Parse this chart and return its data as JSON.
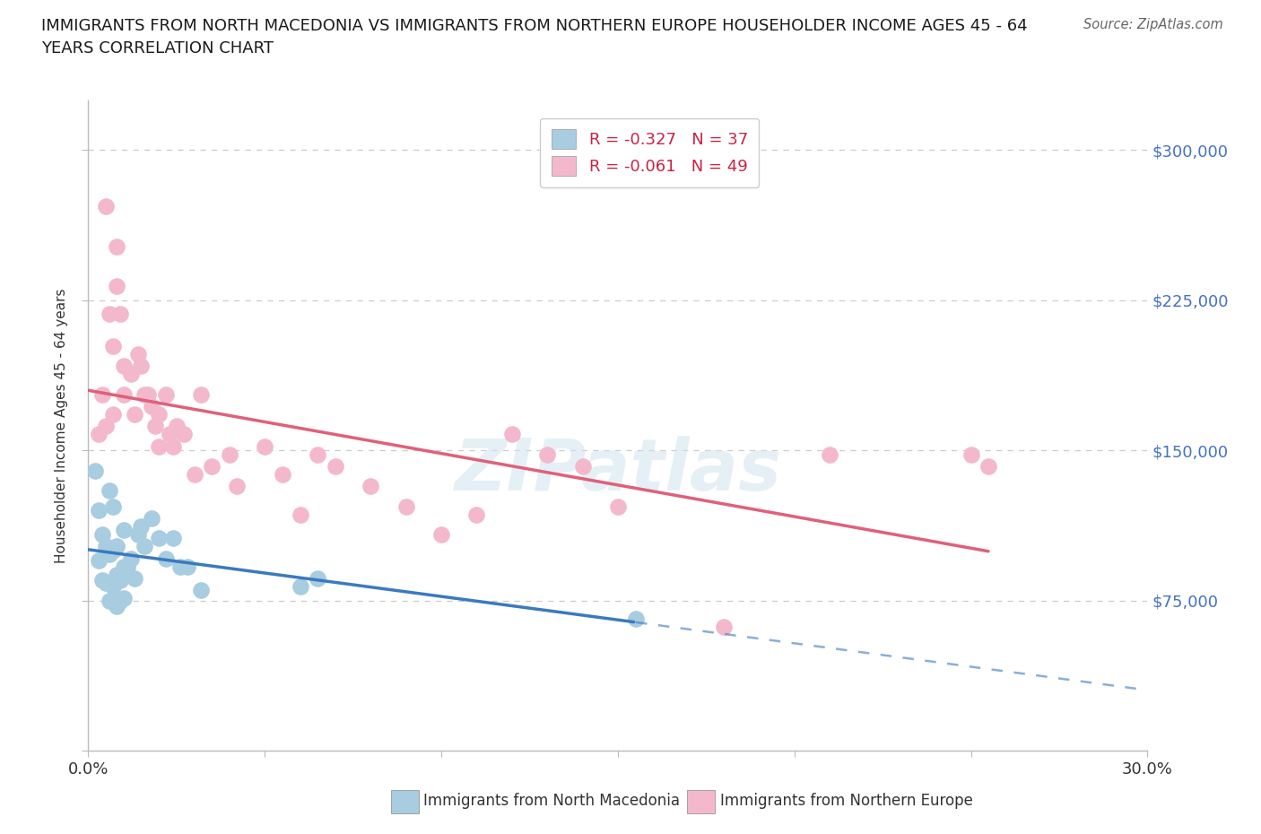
{
  "title_line1": "IMMIGRANTS FROM NORTH MACEDONIA VS IMMIGRANTS FROM NORTHERN EUROPE HOUSEHOLDER INCOME AGES 45 - 64",
  "title_line2": "YEARS CORRELATION CHART",
  "source": "Source: ZipAtlas.com",
  "ylabel": "Householder Income Ages 45 - 64 years",
  "xlim": [
    0.0,
    0.3
  ],
  "ylim": [
    0,
    325000
  ],
  "ytick_vals": [
    0,
    75000,
    150000,
    225000,
    300000
  ],
  "ytick_labels": [
    "",
    "$75,000",
    "$150,000",
    "$225,000",
    "$300,000"
  ],
  "xtick_vals": [
    0.0,
    0.05,
    0.1,
    0.15,
    0.2,
    0.25,
    0.3
  ],
  "legend_r1": "R = -0.327   N = 37",
  "legend_r2": "R = -0.061   N = 49",
  "color_blue": "#a8cce0",
  "color_pink": "#f4b8cc",
  "line_blue": "#3a7abf",
  "line_pink": "#e0607a",
  "watermark": "ZIPatlas",
  "nm_x": [
    0.002,
    0.003,
    0.003,
    0.004,
    0.004,
    0.005,
    0.005,
    0.006,
    0.006,
    0.006,
    0.007,
    0.007,
    0.007,
    0.008,
    0.008,
    0.008,
    0.009,
    0.009,
    0.01,
    0.01,
    0.01,
    0.011,
    0.012,
    0.013,
    0.014,
    0.015,
    0.016,
    0.018,
    0.02,
    0.022,
    0.024,
    0.026,
    0.028,
    0.032,
    0.06,
    0.065,
    0.155
  ],
  "nm_y": [
    140000,
    120000,
    95000,
    108000,
    85000,
    102000,
    84000,
    130000,
    98000,
    75000,
    122000,
    100000,
    82000,
    102000,
    88000,
    72000,
    85000,
    75000,
    110000,
    92000,
    76000,
    92000,
    96000,
    86000,
    108000,
    112000,
    102000,
    116000,
    106000,
    96000,
    106000,
    92000,
    92000,
    80000,
    82000,
    86000,
    66000
  ],
  "ne_x": [
    0.003,
    0.004,
    0.005,
    0.005,
    0.006,
    0.007,
    0.007,
    0.008,
    0.008,
    0.009,
    0.01,
    0.01,
    0.012,
    0.013,
    0.014,
    0.015,
    0.016,
    0.017,
    0.018,
    0.019,
    0.02,
    0.02,
    0.022,
    0.023,
    0.024,
    0.025,
    0.027,
    0.03,
    0.032,
    0.035,
    0.04,
    0.042,
    0.05,
    0.055,
    0.06,
    0.065,
    0.07,
    0.08,
    0.09,
    0.1,
    0.11,
    0.12,
    0.13,
    0.14,
    0.15,
    0.18,
    0.21,
    0.25,
    0.255
  ],
  "ne_y": [
    158000,
    178000,
    272000,
    162000,
    218000,
    202000,
    168000,
    252000,
    232000,
    218000,
    192000,
    178000,
    188000,
    168000,
    198000,
    192000,
    178000,
    178000,
    172000,
    162000,
    168000,
    152000,
    178000,
    158000,
    152000,
    162000,
    158000,
    138000,
    178000,
    142000,
    148000,
    132000,
    152000,
    138000,
    118000,
    148000,
    142000,
    132000,
    122000,
    108000,
    118000,
    158000,
    148000,
    142000,
    122000,
    62000,
    148000,
    148000,
    142000
  ]
}
